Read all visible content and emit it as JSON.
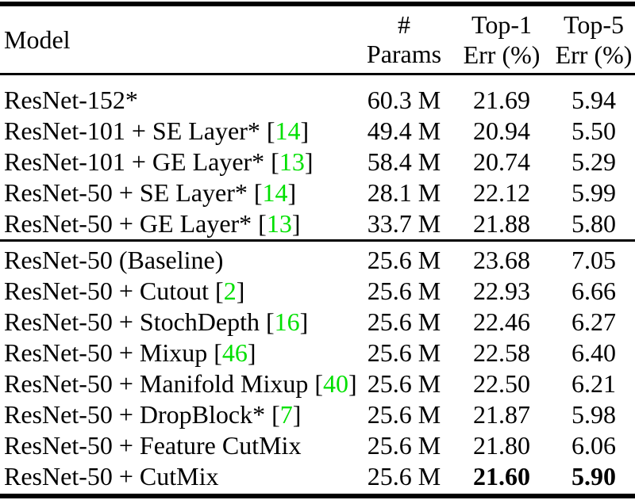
{
  "table": {
    "header": {
      "model": "Model",
      "params": "# Params",
      "top1": [
        "Top-1",
        "Err (%)"
      ],
      "top5": [
        "Top-5",
        "Err (%)"
      ]
    },
    "citation_brackets": {
      "open": "[",
      "close": "]"
    },
    "groups": [
      {
        "rows": [
          {
            "name": "ResNet-152*",
            "cite": "",
            "params": "60.3 M",
            "top1": "21.69",
            "top5": "5.94",
            "bold": false
          },
          {
            "name": "ResNet-101 + SE Layer* ",
            "cite": "14",
            "params": "49.4 M",
            "top1": "20.94",
            "top5": "5.50",
            "bold": false
          },
          {
            "name": "ResNet-101 + GE Layer* ",
            "cite": "13",
            "params": "58.4 M",
            "top1": "20.74",
            "top5": "5.29",
            "bold": false
          },
          {
            "name": "ResNet-50 + SE Layer* ",
            "cite": "14",
            "params": "28.1 M",
            "top1": "22.12",
            "top5": "5.99",
            "bold": false
          },
          {
            "name": "ResNet-50 + GE Layer* ",
            "cite": "13",
            "params": "33.7 M",
            "top1": "21.88",
            "top5": "5.80",
            "bold": false
          }
        ]
      },
      {
        "rows": [
          {
            "name": "ResNet-50 (Baseline)",
            "cite": "",
            "params": "25.6 M",
            "top1": "23.68",
            "top5": "7.05",
            "bold": false
          },
          {
            "name": "ResNet-50 + Cutout ",
            "cite": "2",
            "params": "25.6 M",
            "top1": "22.93",
            "top5": "6.66",
            "bold": false
          },
          {
            "name": "ResNet-50 + StochDepth ",
            "cite": "16",
            "params": "25.6 M",
            "top1": "22.46",
            "top5": "6.27",
            "bold": false
          },
          {
            "name": "ResNet-50 + Mixup ",
            "cite": "46",
            "params": "25.6 M",
            "top1": "22.58",
            "top5": "6.40",
            "bold": false
          },
          {
            "name": "ResNet-50 + Manifold Mixup ",
            "cite": "40",
            "params": "25.6 M",
            "top1": "22.50",
            "top5": "6.21",
            "bold": false
          },
          {
            "name": "ResNet-50 + DropBlock* ",
            "cite": "7",
            "params": "25.6 M",
            "top1": "21.87",
            "top5": "5.98",
            "bold": false
          },
          {
            "name": "ResNet-50 + Feature CutMix",
            "cite": "",
            "params": "25.6 M",
            "top1": "21.80",
            "top5": "6.06",
            "bold": false
          },
          {
            "name": "ResNet-50 + CutMix",
            "cite": "",
            "params": "25.6 M",
            "top1": "21.60",
            "top5": "5.90",
            "bold": true
          }
        ]
      }
    ]
  },
  "colors": {
    "background": "#ffffff",
    "text": "#000000",
    "rule": "#000000",
    "citation_green": "#00e000"
  }
}
